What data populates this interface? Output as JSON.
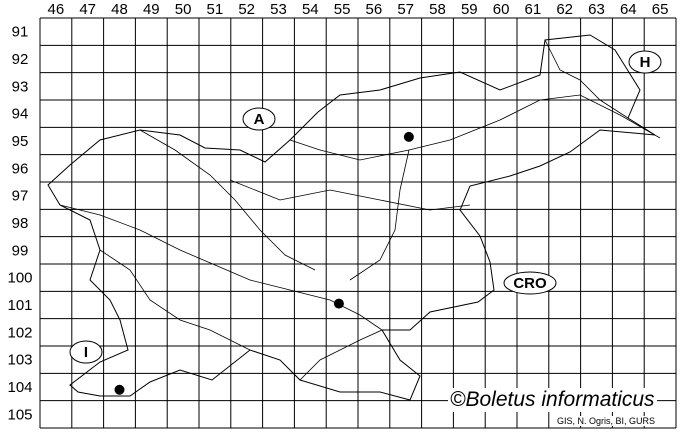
{
  "map": {
    "columns": [
      "46",
      "47",
      "48",
      "49",
      "50",
      "51",
      "52",
      "53",
      "54",
      "55",
      "56",
      "57",
      "58",
      "59",
      "60",
      "61",
      "62",
      "63",
      "64",
      "65"
    ],
    "rows": [
      "91",
      "92",
      "93",
      "94",
      "95",
      "96",
      "97",
      "98",
      "99",
      "100",
      "101",
      "102",
      "103",
      "104",
      "105"
    ],
    "country_labels": [
      {
        "id": "austria",
        "text": "A"
      },
      {
        "id": "hungary",
        "text": "H"
      },
      {
        "id": "croatia",
        "text": "CRO"
      },
      {
        "id": "italy",
        "text": "I"
      }
    ],
    "records": [
      {
        "column": "57",
        "row": "95"
      },
      {
        "column": "55",
        "row": "101"
      },
      {
        "column": "48",
        "row": "104"
      }
    ],
    "marker_color": "#000000",
    "line_color": "#000000"
  },
  "copyright": "©Boletus informaticus",
  "credit": "GIS, N. Ogris, BI, GURS"
}
